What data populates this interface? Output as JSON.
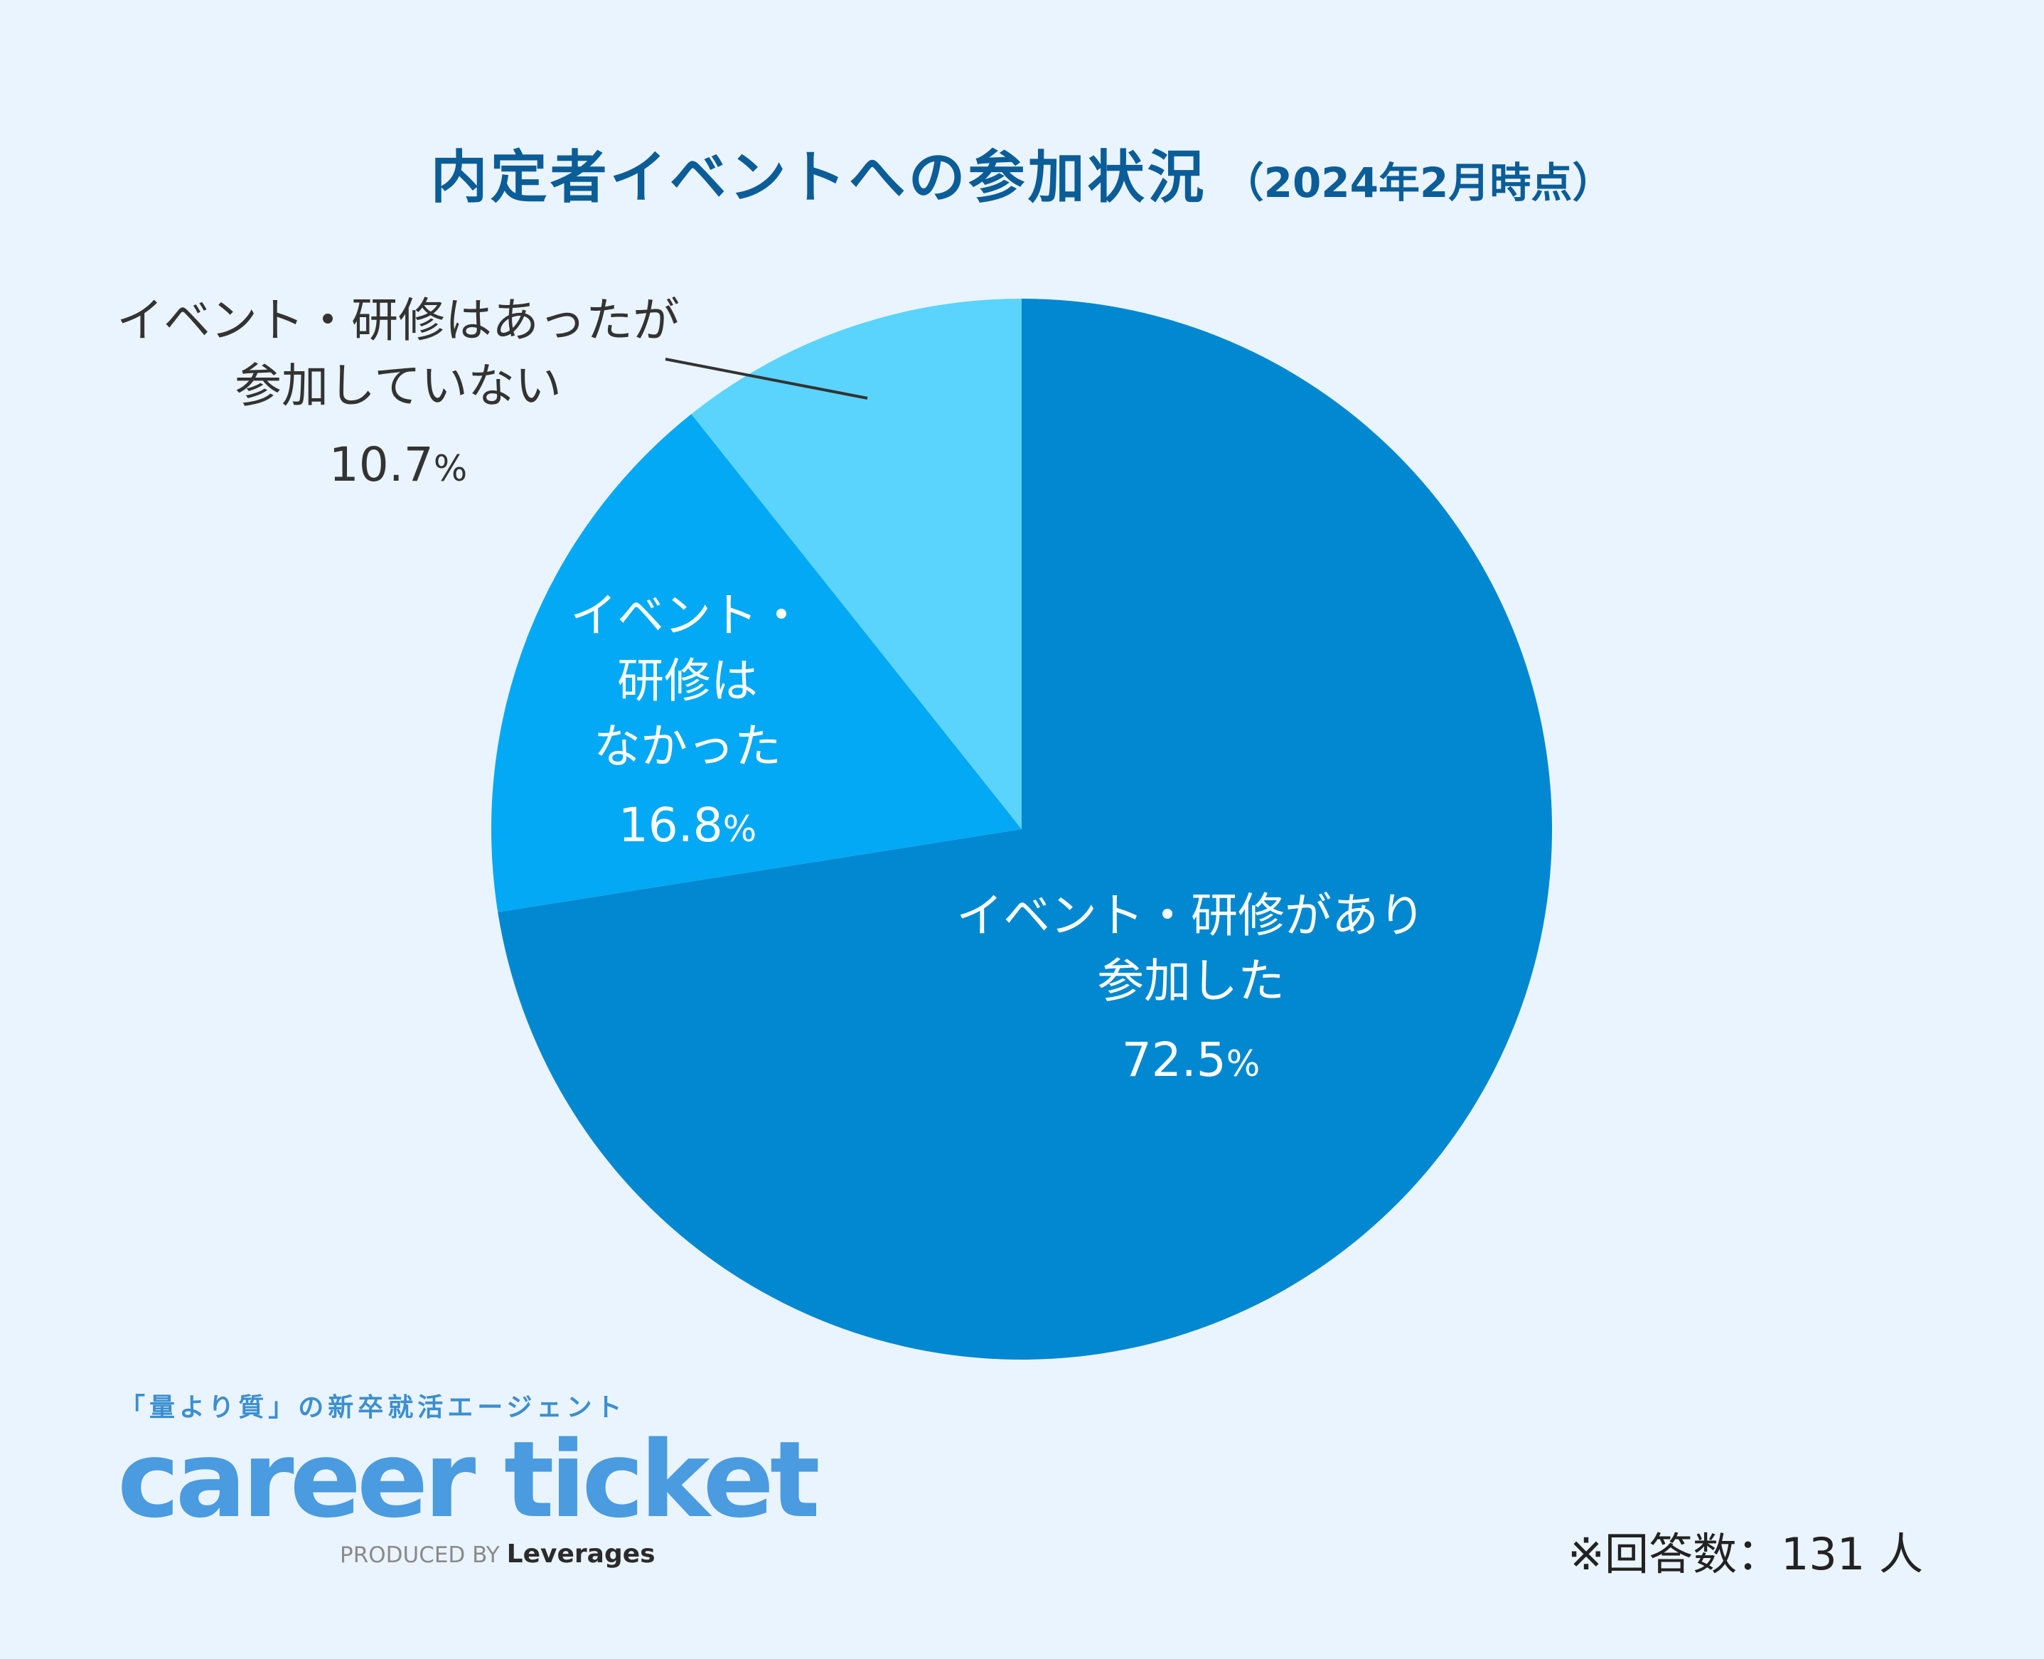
{
  "title": {
    "main": "内定者イベントへの参加状況",
    "sub": "（2024年2月時点）"
  },
  "chart_data": {
    "type": "pie",
    "slices": [
      {
        "label_lines": [
          "イベント・研修があり",
          "参加した"
        ],
        "value": 72.5,
        "value_text": "72.5",
        "color": "#0288d1"
      },
      {
        "label_lines": [
          "イベント・",
          "研修は",
          "なかった"
        ],
        "value": 16.8,
        "value_text": "16.8",
        "color": "#03a9f4"
      },
      {
        "label_lines": [
          "イベント・研修はあったが",
          "参加していない"
        ],
        "value": 10.7,
        "value_text": "10.7",
        "color": "#5ad4fc"
      }
    ],
    "unit": "%",
    "start": "12 o'clock",
    "direction": "clockwise"
  },
  "branding": {
    "tagline": "「量より質」の新卒就活エージェント",
    "name": "career ticket",
    "produced_by": "PRODUCED BY",
    "company": "Leverages"
  },
  "footnote": "※回答数：131 人",
  "colors": {
    "background": "#eaf4fe",
    "title": "#0b5d98",
    "brand": "#4a9be0"
  }
}
